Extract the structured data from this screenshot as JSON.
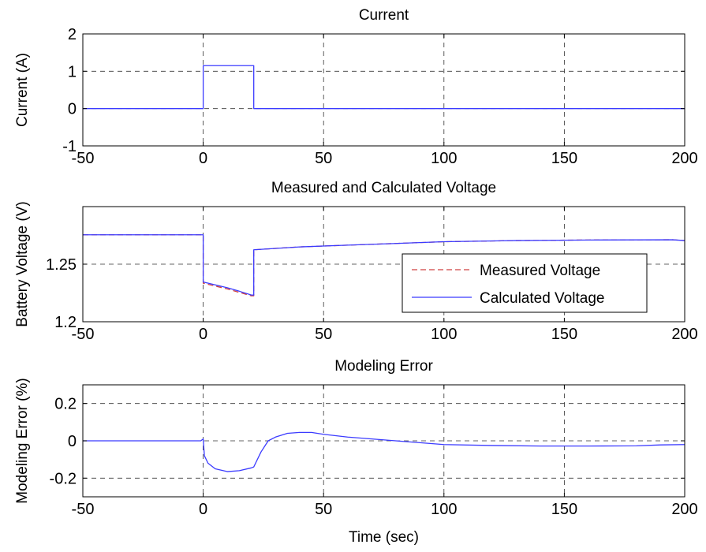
{
  "chart_data": [
    {
      "type": "line",
      "title": "Current",
      "xlabel": "",
      "ylabel": "Current (A)",
      "xlim": [
        -50,
        200
      ],
      "ylim": [
        -1,
        2
      ],
      "xticks": [
        -50,
        0,
        50,
        100,
        150,
        200
      ],
      "xtick_labels": [
        "-50",
        "0",
        "50",
        "100",
        "150",
        "200"
      ],
      "yticks": [
        -1,
        0,
        1,
        2
      ],
      "ytick_labels": [
        "-1",
        "0",
        "1",
        "2"
      ],
      "grid": true,
      "series": [
        {
          "color": "#3b3bff",
          "style": "solid",
          "points": [
            [
              -50,
              0
            ],
            [
              0,
              0
            ],
            [
              0,
              1.15
            ],
            [
              21,
              1.15
            ],
            [
              21,
              0
            ],
            [
              200,
              0
            ]
          ]
        }
      ]
    },
    {
      "type": "line",
      "title": "Measured and Calculated Voltage",
      "xlabel": "",
      "ylabel": "Battery Voltage (V)",
      "xlim": [
        -50,
        200
      ],
      "ylim": [
        1.2,
        1.3
      ],
      "xticks": [
        -50,
        0,
        50,
        100,
        150,
        200
      ],
      "xtick_labels": [
        "-50",
        "0",
        "50",
        "100",
        "150",
        "200"
      ],
      "yticks": [
        1.2,
        1.25
      ],
      "ytick_labels": [
        "1.2",
        "1.25"
      ],
      "grid": true,
      "legend": {
        "placement": "inside-right",
        "entries": [
          "Measured Voltage",
          "Calculated Voltage"
        ]
      },
      "series": [
        {
          "name": "Measured Voltage",
          "color": "#d04040",
          "style": "dashed",
          "points": [
            [
              -50,
              1.2755
            ],
            [
              0,
              1.2755
            ],
            [
              0,
              1.2335
            ],
            [
              5,
              1.231
            ],
            [
              10,
              1.2285
            ],
            [
              15,
              1.2255
            ],
            [
              20,
              1.2225
            ],
            [
              21,
              1.2225
            ],
            [
              21,
              1.2625
            ],
            [
              40,
              1.265
            ],
            [
              60,
              1.2665
            ],
            [
              80,
              1.268
            ],
            [
              100,
              1.2695
            ],
            [
              130,
              1.2705
            ],
            [
              160,
              1.271
            ],
            [
              195,
              1.2712
            ],
            [
              200,
              1.2705
            ]
          ]
        },
        {
          "name": "Calculated Voltage",
          "color": "#3b3bff",
          "style": "solid",
          "points": [
            [
              -50,
              1.2755
            ],
            [
              0,
              1.2755
            ],
            [
              0,
              1.2345
            ],
            [
              5,
              1.232
            ],
            [
              10,
              1.2295
            ],
            [
              15,
              1.2265
            ],
            [
              20,
              1.2232
            ],
            [
              21,
              1.2232
            ],
            [
              21,
              1.2625
            ],
            [
              40,
              1.265
            ],
            [
              60,
              1.2665
            ],
            [
              80,
              1.268
            ],
            [
              100,
              1.2695
            ],
            [
              130,
              1.2705
            ],
            [
              160,
              1.271
            ],
            [
              195,
              1.2712
            ],
            [
              200,
              1.2705
            ]
          ]
        }
      ]
    },
    {
      "type": "line",
      "title": "Modeling Error",
      "xlabel": "Time (sec)",
      "ylabel": "Modeling Error (%)",
      "xlim": [
        -50,
        200
      ],
      "ylim": [
        -0.3,
        0.3
      ],
      "xticks": [
        -50,
        0,
        50,
        100,
        150,
        200
      ],
      "xtick_labels": [
        "-50",
        "0",
        "50",
        "100",
        "150",
        "200"
      ],
      "yticks": [
        -0.2,
        0,
        0.2
      ],
      "ytick_labels": [
        "-0.2",
        "0",
        "0.2"
      ],
      "grid": true,
      "series": [
        {
          "color": "#3b3bff",
          "style": "solid",
          "points": [
            [
              -50,
              0
            ],
            [
              -1,
              0
            ],
            [
              0,
              0.01
            ],
            [
              0.5,
              -0.08
            ],
            [
              2,
              -0.12
            ],
            [
              5,
              -0.15
            ],
            [
              10,
              -0.165
            ],
            [
              15,
              -0.16
            ],
            [
              20,
              -0.145
            ],
            [
              21,
              -0.14
            ],
            [
              24,
              -0.06
            ],
            [
              27,
              0.0
            ],
            [
              30,
              0.02
            ],
            [
              35,
              0.04
            ],
            [
              40,
              0.045
            ],
            [
              45,
              0.045
            ],
            [
              50,
              0.035
            ],
            [
              60,
              0.02
            ],
            [
              70,
              0.01
            ],
            [
              80,
              0.0
            ],
            [
              90,
              -0.01
            ],
            [
              100,
              -0.02
            ],
            [
              120,
              -0.025
            ],
            [
              140,
              -0.028
            ],
            [
              160,
              -0.028
            ],
            [
              180,
              -0.027
            ],
            [
              190,
              -0.022
            ],
            [
              200,
              -0.02
            ]
          ]
        }
      ]
    }
  ]
}
